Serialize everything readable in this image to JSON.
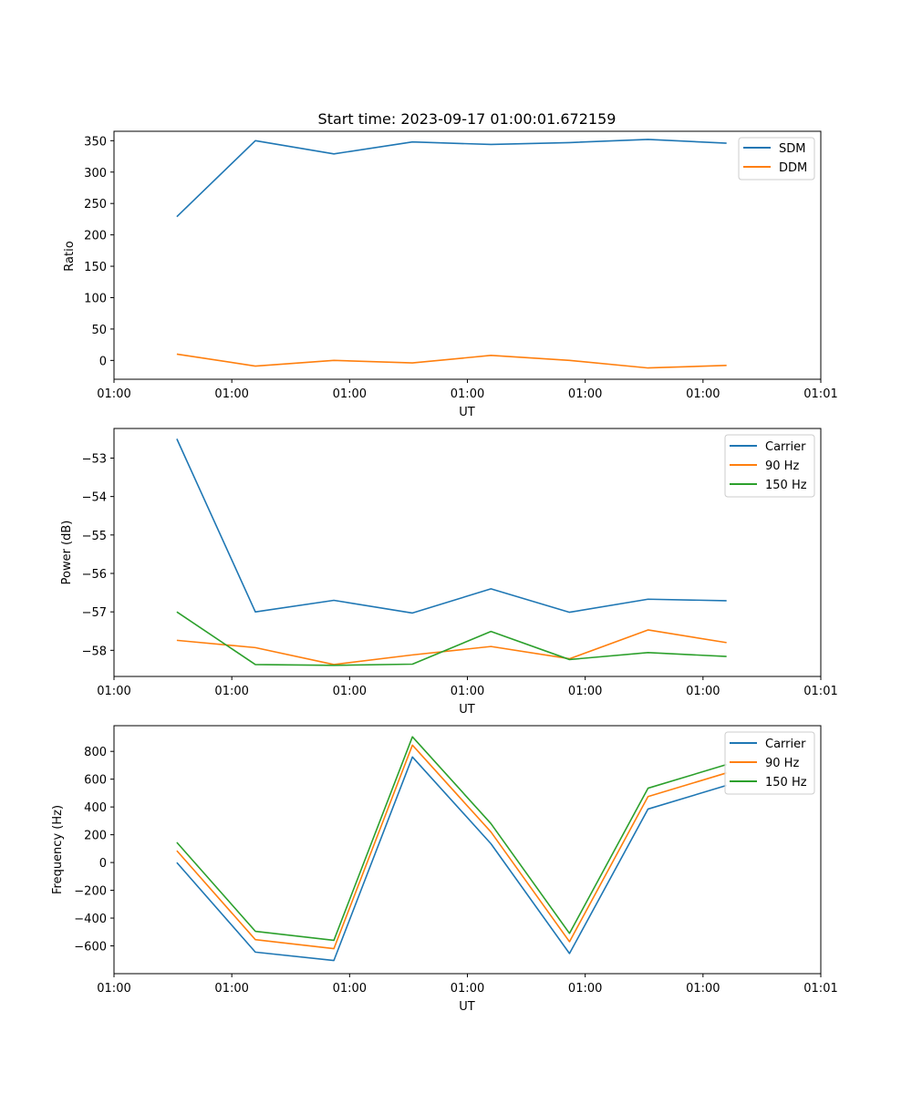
{
  "colors": {
    "c0": "#1f77b4",
    "c1": "#ff7f0e",
    "c2": "#2ca02c"
  },
  "chart_data": [
    {
      "type": "line",
      "title": "Start time: 2023-09-17 01:00:01.672159",
      "xlabel": "UT",
      "ylabel": "Ratio",
      "x": [
        1,
        2,
        3,
        4,
        5,
        6,
        7,
        8
      ],
      "xlim": [
        0.2,
        9.2
      ],
      "x_ticks": [
        0.2,
        1.7,
        3.2,
        4.7,
        6.2,
        7.7,
        9.2
      ],
      "x_tick_labels": [
        "01:00",
        "01:00",
        "01:00",
        "01:00",
        "01:00",
        "01:00",
        "01:01"
      ],
      "ylim": [
        -30,
        365
      ],
      "y_ticks": [
        0,
        50,
        100,
        150,
        200,
        250,
        300,
        350
      ],
      "y_tick_labels": [
        "0",
        "50",
        "100",
        "150",
        "200",
        "250",
        "300",
        "350"
      ],
      "legend_position": "top-right",
      "series": [
        {
          "name": "SDM",
          "color": "#1f77b4",
          "values": [
            229,
            350,
            329,
            348,
            344,
            347,
            352,
            346
          ]
        },
        {
          "name": "DDM",
          "color": "#ff7f0e",
          "values": [
            10,
            -9,
            0,
            -4,
            8,
            0,
            -12,
            -8
          ]
        }
      ]
    },
    {
      "type": "line",
      "title": "",
      "xlabel": "UT",
      "ylabel": "Power (dB)",
      "x": [
        1,
        2,
        3,
        4,
        5,
        6,
        7,
        8
      ],
      "xlim": [
        0.2,
        9.2
      ],
      "x_ticks": [
        0.2,
        1.7,
        3.2,
        4.7,
        6.2,
        7.7,
        9.2
      ],
      "x_tick_labels": [
        "01:00",
        "01:00",
        "01:00",
        "01:00",
        "01:00",
        "01:00",
        "01:01"
      ],
      "ylim": [
        -58.68,
        -52.23
      ],
      "y_ticks": [
        -58,
        -57,
        -56,
        -55,
        -54,
        -53
      ],
      "y_tick_labels": [
        "−58",
        "−57",
        "−56",
        "−55",
        "−54",
        "−53"
      ],
      "legend_position": "top-right",
      "series": [
        {
          "name": "Carrier",
          "color": "#1f77b4",
          "values": [
            -52.5,
            -57.0,
            -56.7,
            -57.03,
            -56.4,
            -57.01,
            -56.67,
            -56.71
          ]
        },
        {
          "name": "90 Hz",
          "color": "#ff7f0e",
          "values": [
            -57.74,
            -57.93,
            -58.37,
            -58.12,
            -57.9,
            -58.22,
            -57.47,
            -57.8
          ]
        },
        {
          "name": "150 Hz",
          "color": "#2ca02c",
          "values": [
            -57.0,
            -58.37,
            -58.39,
            -58.36,
            -57.51,
            -58.24,
            -58.06,
            -58.16
          ]
        }
      ]
    },
    {
      "type": "line",
      "title": "",
      "xlabel": "UT",
      "ylabel": "Frequency (Hz)",
      "x": [
        1,
        2,
        3,
        4,
        5,
        6,
        7,
        8
      ],
      "xlim": [
        0.2,
        9.2
      ],
      "x_ticks": [
        0.2,
        1.7,
        3.2,
        4.7,
        6.2,
        7.7,
        9.2
      ],
      "x_tick_labels": [
        "01:00",
        "01:00",
        "01:00",
        "01:00",
        "01:00",
        "01:00",
        "01:01"
      ],
      "ylim": [
        -800,
        985
      ],
      "y_ticks": [
        -600,
        -400,
        -200,
        0,
        200,
        400,
        600,
        800
      ],
      "y_tick_labels": [
        "−600",
        "−400",
        "−200",
        "0",
        "200",
        "400",
        "600",
        "800"
      ],
      "legend_position": "top-right",
      "series": [
        {
          "name": "Carrier",
          "color": "#1f77b4",
          "values": [
            0,
            -645,
            -705,
            760,
            135,
            -655,
            385,
            555
          ]
        },
        {
          "name": "90 Hz",
          "color": "#ff7f0e",
          "values": [
            85,
            -555,
            -620,
            845,
            220,
            -570,
            475,
            645
          ]
        },
        {
          "name": "150 Hz",
          "color": "#2ca02c",
          "values": [
            145,
            -495,
            -560,
            905,
            280,
            -510,
            535,
            705
          ]
        }
      ]
    }
  ]
}
